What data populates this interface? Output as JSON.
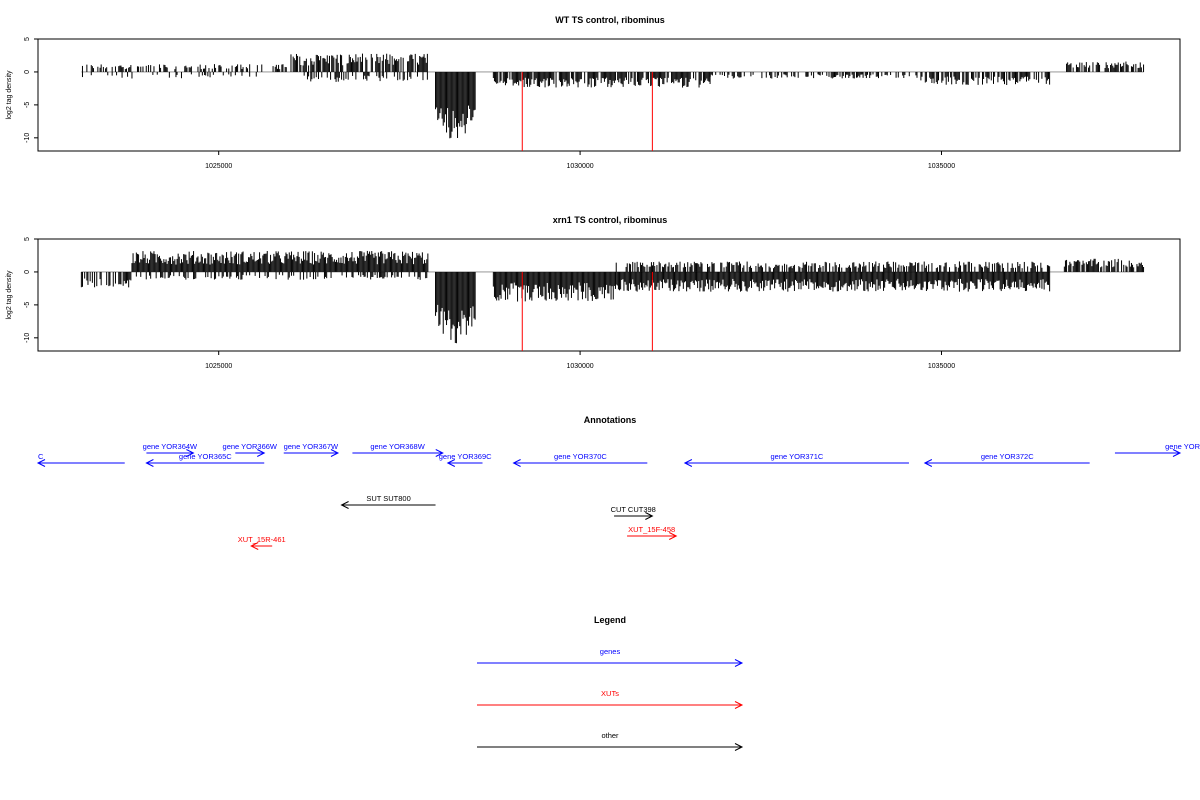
{
  "chart_data": [
    {
      "type": "bar",
      "title": "WT TS control, ribominus",
      "ylabel": "log2 tag density",
      "xlim": [
        1022500,
        1038300
      ],
      "ylim": [
        -12,
        5
      ],
      "xticks": [
        1025000,
        1030000,
        1035000
      ],
      "xtick_labels": [
        "1025000",
        "1030000",
        "1035000"
      ],
      "yticks": [
        -10,
        -5,
        0,
        5
      ],
      "ytick_labels": [
        "-10",
        "-5",
        "0",
        "5"
      ],
      "zero_line_range": [
        1023100,
        1037800
      ],
      "signal_profile": [
        {
          "start": 1023100,
          "end": 1025600,
          "sign": 1,
          "amp": 1.2,
          "density": 0.45
        },
        {
          "start": 1023100,
          "end": 1025600,
          "sign": -1,
          "amp": 1.0,
          "density": 0.15
        },
        {
          "start": 1025600,
          "end": 1026000,
          "sign": 1,
          "amp": 1.2,
          "density": 0.3
        },
        {
          "start": 1026000,
          "end": 1027900,
          "sign": 1,
          "amp": 2.8,
          "density": 0.75
        },
        {
          "start": 1026000,
          "end": 1027900,
          "sign": -1,
          "amp": 1.6,
          "density": 0.3
        },
        {
          "start": 1028000,
          "end": 1028550,
          "sign": -1,
          "amp": 9.0,
          "density": 1.0
        },
        {
          "start": 1028800,
          "end": 1031800,
          "sign": -1,
          "amp": 2.4,
          "density": 0.85
        },
        {
          "start": 1031800,
          "end": 1034700,
          "sign": -1,
          "amp": 1.0,
          "density": 0.45
        },
        {
          "start": 1034700,
          "end": 1036500,
          "sign": -1,
          "amp": 2.0,
          "density": 0.7
        },
        {
          "start": 1036700,
          "end": 1037800,
          "sign": 1,
          "amp": 1.6,
          "density": 0.7
        }
      ],
      "markers": [
        {
          "x": 1029200,
          "y": -12,
          "color": "#ff0000"
        },
        {
          "x": 1031000,
          "y": -12,
          "color": "#ff0000"
        }
      ]
    },
    {
      "type": "bar",
      "title": "xrn1 TS control, ribominus",
      "ylabel": "log2 tag density",
      "xlim": [
        1022500,
        1038300
      ],
      "ylim": [
        -12,
        5
      ],
      "xticks": [
        1025000,
        1030000,
        1035000
      ],
      "xtick_labels": [
        "1025000",
        "1030000",
        "1035000"
      ],
      "yticks": [
        -10,
        -5,
        0,
        5
      ],
      "ytick_labels": [
        "-10",
        "-5",
        "0",
        "5"
      ],
      "zero_line_range": [
        1023100,
        1037800
      ],
      "signal_profile": [
        {
          "start": 1023100,
          "end": 1023800,
          "sign": -1,
          "amp": 2.5,
          "density": 0.5
        },
        {
          "start": 1023800,
          "end": 1027900,
          "sign": 1,
          "amp": 3.2,
          "density": 1.0
        },
        {
          "start": 1023800,
          "end": 1027900,
          "sign": -1,
          "amp": 1.2,
          "density": 0.4
        },
        {
          "start": 1028000,
          "end": 1028550,
          "sign": -1,
          "amp": 9.5,
          "density": 1.0
        },
        {
          "start": 1028800,
          "end": 1030500,
          "sign": -1,
          "amp": 4.5,
          "density": 1.0
        },
        {
          "start": 1030500,
          "end": 1036500,
          "sign": -1,
          "amp": 3.0,
          "density": 1.0
        },
        {
          "start": 1030500,
          "end": 1036500,
          "sign": 1,
          "amp": 1.6,
          "density": 0.6
        },
        {
          "start": 1036700,
          "end": 1037800,
          "sign": 1,
          "amp": 2.0,
          "density": 0.8
        }
      ],
      "markers": [
        {
          "x": 1029200,
          "y": -12,
          "color": "#ff0000"
        },
        {
          "x": 1031000,
          "y": -12,
          "color": "#ff0000"
        }
      ]
    }
  ],
  "annotations": {
    "title": "Annotations",
    "xlim": [
      1022500,
      1038300
    ],
    "features": [
      {
        "label": "C",
        "start": 1022500,
        "end": 1023700,
        "strand": "-",
        "row": 1,
        "color": "#0000ff",
        "label_at": "start"
      },
      {
        "label": "gene YOR364W",
        "start": 1024000,
        "end": 1024650,
        "strand": "+",
        "row": 0,
        "color": "#0000ff"
      },
      {
        "label": "gene YOR365C",
        "start": 1024000,
        "end": 1025630,
        "strand": "-",
        "row": 1,
        "color": "#0000ff"
      },
      {
        "label": "gene YOR366W",
        "start": 1025230,
        "end": 1025630,
        "strand": "+",
        "row": 0,
        "color": "#0000ff"
      },
      {
        "label": "gene YOR367W",
        "start": 1025900,
        "end": 1026650,
        "strand": "+",
        "row": 0,
        "color": "#0000ff"
      },
      {
        "label": "gene YOR368W",
        "start": 1026850,
        "end": 1028100,
        "strand": "+",
        "row": 0,
        "color": "#0000ff"
      },
      {
        "label": "gene YOR369C",
        "start": 1028170,
        "end": 1028650,
        "strand": "-",
        "row": 1,
        "color": "#0000ff"
      },
      {
        "label": "gene YOR370C",
        "start": 1029080,
        "end": 1030930,
        "strand": "-",
        "row": 1,
        "color": "#0000ff"
      },
      {
        "label": "gene YOR371C",
        "start": 1031450,
        "end": 1034550,
        "strand": "-",
        "row": 1,
        "color": "#0000ff"
      },
      {
        "label": "gene YOR372C",
        "start": 1034770,
        "end": 1037050,
        "strand": "-",
        "row": 1,
        "color": "#0000ff"
      },
      {
        "label": "gene YOR",
        "start": 1037400,
        "end": 1038300,
        "strand": "+",
        "row": 0,
        "color": "#0000ff",
        "label_at": "end"
      },
      {
        "label": "SUT SUT800",
        "start": 1026700,
        "end": 1028000,
        "strand": "-",
        "row": 2,
        "color": "#000000"
      },
      {
        "label": "CUT CUT398",
        "start": 1030470,
        "end": 1031000,
        "strand": "+",
        "row": 3,
        "color": "#000000"
      },
      {
        "label": "XUT_15F-458",
        "start": 1030650,
        "end": 1031330,
        "strand": "+",
        "row": 4,
        "color": "#ff0000"
      },
      {
        "label": "XUT_15R-461",
        "start": 1025450,
        "end": 1025740,
        "strand": "-",
        "row": 5,
        "color": "#ff0000"
      }
    ]
  },
  "legend": {
    "title": "Legend",
    "items": [
      {
        "label": "genes",
        "color": "#0000ff"
      },
      {
        "label": "XUTs",
        "color": "#ff0000"
      },
      {
        "label": "other",
        "color": "#000000"
      }
    ]
  }
}
